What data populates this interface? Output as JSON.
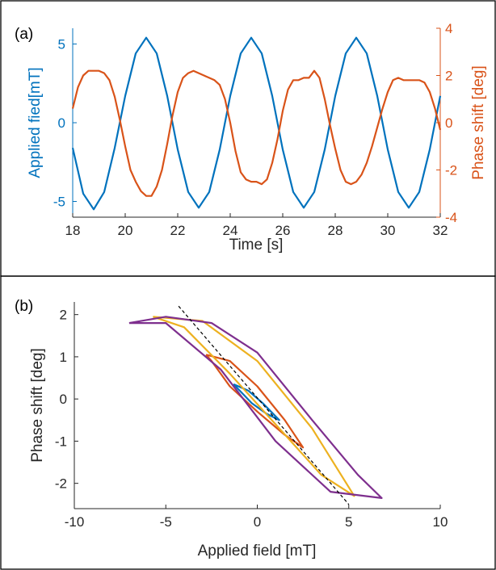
{
  "chart_data": [
    {
      "panel_label": "(a)",
      "type": "line",
      "xlabel": "Time [s]",
      "ylabel_left": "Applied fied[mT]",
      "ylabel_right": "Phase shift [deg]",
      "xlim": [
        18,
        32
      ],
      "ylim_left": [
        -6,
        6
      ],
      "ylim_right": [
        -4,
        4
      ],
      "xticks": [
        18,
        20,
        22,
        24,
        26,
        28,
        30,
        32
      ],
      "yticks_left": [
        -5,
        0,
        5
      ],
      "yticks_right": [
        -4,
        -2,
        0,
        2,
        4
      ],
      "left_axis_color": "#0072BD",
      "right_axis_color": "#D95319",
      "series": [
        {
          "axis": "left",
          "color": "#0072BD",
          "x": [
            18.0,
            18.4,
            18.8,
            19.2,
            19.6,
            20.0,
            20.4,
            20.8,
            21.2,
            21.6,
            22.0,
            22.4,
            22.8,
            23.2,
            23.6,
            24.0,
            24.4,
            24.8,
            25.2,
            25.6,
            26.0,
            26.4,
            26.8,
            27.2,
            27.6,
            28.0,
            28.4,
            28.8,
            29.2,
            29.6,
            30.0,
            30.4,
            30.8,
            31.2,
            31.6,
            32.0
          ],
          "values": [
            -1.6,
            -4.5,
            -5.5,
            -4.4,
            -1.6,
            1.7,
            4.4,
            5.4,
            4.4,
            1.7,
            -1.7,
            -4.4,
            -5.4,
            -4.4,
            -1.7,
            1.7,
            4.4,
            5.4,
            4.4,
            1.7,
            -1.7,
            -4.4,
            -5.4,
            -4.4,
            -1.7,
            1.7,
            4.4,
            5.4,
            4.4,
            1.7,
            -1.7,
            -4.4,
            -5.4,
            -4.4,
            -1.7,
            1.7
          ]
        },
        {
          "axis": "right",
          "color": "#D95319",
          "x": [
            18.0,
            18.2,
            18.4,
            18.6,
            18.8,
            19.0,
            19.2,
            19.4,
            19.6,
            19.8,
            20.0,
            20.2,
            20.4,
            20.6,
            20.8,
            21.0,
            21.2,
            21.4,
            21.6,
            21.8,
            22.0,
            22.2,
            22.4,
            22.6,
            22.8,
            23.0,
            23.2,
            23.4,
            23.6,
            23.8,
            24.0,
            24.2,
            24.4,
            24.6,
            24.8,
            25.0,
            25.2,
            25.4,
            25.6,
            25.8,
            26.0,
            26.2,
            26.4,
            26.6,
            26.8,
            27.0,
            27.2,
            27.4,
            27.6,
            27.8,
            28.0,
            28.2,
            28.4,
            28.6,
            28.8,
            29.0,
            29.2,
            29.4,
            29.6,
            29.8,
            30.0,
            30.2,
            30.4,
            30.6,
            30.8,
            31.0,
            31.2,
            31.4,
            31.6,
            31.8,
            32.0
          ],
          "values": [
            0.6,
            1.5,
            2.0,
            2.2,
            2.2,
            2.2,
            2.1,
            1.8,
            1.1,
            0.1,
            -1.0,
            -2.0,
            -2.5,
            -2.9,
            -3.1,
            -3.1,
            -2.7,
            -2.0,
            -0.9,
            0.3,
            1.3,
            1.9,
            2.1,
            2.2,
            2.1,
            2.0,
            1.9,
            1.8,
            1.6,
            1.0,
            0.0,
            -1.2,
            -2.1,
            -2.4,
            -2.5,
            -2.5,
            -2.6,
            -2.4,
            -1.7,
            -0.7,
            0.5,
            1.4,
            1.8,
            1.8,
            1.9,
            1.9,
            2.2,
            1.9,
            1.0,
            -0.1,
            -1.1,
            -2.0,
            -2.5,
            -2.6,
            -2.5,
            -2.2,
            -1.7,
            -1.0,
            -0.2,
            0.6,
            1.3,
            1.8,
            1.9,
            1.8,
            1.8,
            1.8,
            1.8,
            1.7,
            1.3,
            0.6,
            -0.3
          ]
        }
      ]
    },
    {
      "panel_label": "(b)",
      "type": "line",
      "xlabel": "Applied field [mT]",
      "ylabel": "Phase shift [deg]",
      "xlim": [
        -10,
        10
      ],
      "ylim": [
        -2.6,
        2.3
      ],
      "xticks": [
        -10,
        -5,
        0,
        5,
        10
      ],
      "yticks": [
        -2,
        -1,
        0,
        1,
        2
      ],
      "series": [
        {
          "color": "#0072BD",
          "x": [
            -1.3,
            -0.5,
            0.3,
            1.2,
            0.5,
            -0.3,
            -1.3
          ],
          "values": [
            0.35,
            0.2,
            -0.1,
            -0.5,
            -0.35,
            -0.1,
            0.35
          ]
        },
        {
          "color": "#D95319",
          "x": [
            -2.8,
            -1.5,
            0.0,
            1.5,
            2.5,
            1.5,
            0.0,
            -1.5,
            -2.5,
            -2.8
          ],
          "values": [
            1.05,
            0.9,
            0.3,
            -0.5,
            -1.15,
            -0.85,
            -0.3,
            0.3,
            0.9,
            1.05
          ]
        },
        {
          "color": "#EDB120",
          "x": [
            -5.7,
            -3.0,
            0.0,
            3.0,
            5.3,
            3.5,
            1.0,
            -1.5,
            -4.0,
            -5.7
          ],
          "values": [
            1.95,
            1.85,
            0.9,
            -0.7,
            -2.3,
            -1.8,
            -0.6,
            0.6,
            1.7,
            1.95
          ]
        },
        {
          "color": "#7E2F8E",
          "x": [
            -7.0,
            -5.0,
            -2.5,
            0.0,
            3.0,
            5.5,
            6.8,
            4.0,
            1.0,
            -2.0,
            -5.0,
            -7.0
          ],
          "values": [
            1.8,
            1.95,
            1.8,
            1.1,
            -0.5,
            -1.8,
            -2.35,
            -2.2,
            -1.0,
            0.7,
            1.8,
            1.8
          ]
        },
        {
          "color": "#000000",
          "dashed": true,
          "x": [
            -4.3,
            5.0
          ],
          "values": [
            2.2,
            -2.5
          ]
        }
      ]
    }
  ]
}
